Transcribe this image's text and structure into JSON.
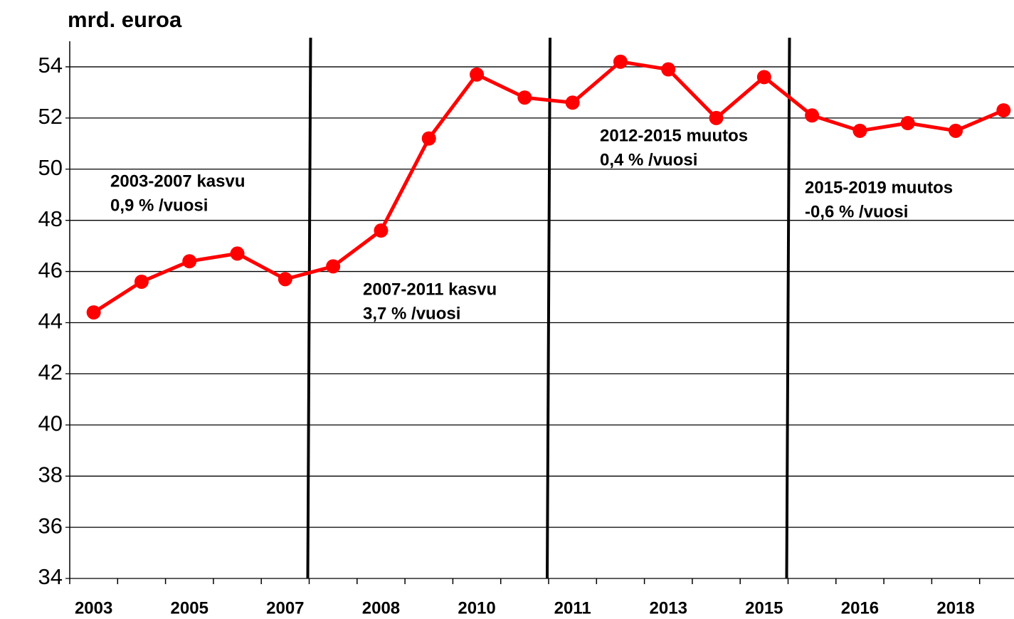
{
  "chart_data": {
    "type": "line",
    "title": "mrd. euroa",
    "categories": [
      "2003",
      null,
      "2005",
      null,
      "2007",
      null,
      "2008",
      null,
      "2010",
      null,
      "2011",
      null,
      "2013",
      null,
      "2015",
      null,
      "2016",
      null,
      "2018",
      null
    ],
    "series": [
      {
        "name": "mrd. euroa",
        "color": "#ff0000",
        "values": [
          44.4,
          45.6,
          46.4,
          46.7,
          45.7,
          46.2,
          47.6,
          51.2,
          53.7,
          52.8,
          52.6,
          54.2,
          53.9,
          52.0,
          53.6,
          52.1,
          51.5,
          51.8,
          51.5,
          52.3
        ]
      }
    ],
    "ylim": [
      34,
      55
    ],
    "yticks": [
      34,
      36,
      38,
      40,
      42,
      44,
      46,
      48,
      50,
      52,
      54
    ],
    "grid": true,
    "annotations": [
      [
        "2003-2007 kasvu",
        "0,9 % /vuosi"
      ],
      [
        "2007-2011 kasvu",
        "3,7 % /vuosi"
      ],
      [
        "2012-2015 muutos",
        "0,4 % /vuosi"
      ],
      [
        "2015-2019 muutos",
        "-0,6 % /vuosi"
      ]
    ]
  }
}
